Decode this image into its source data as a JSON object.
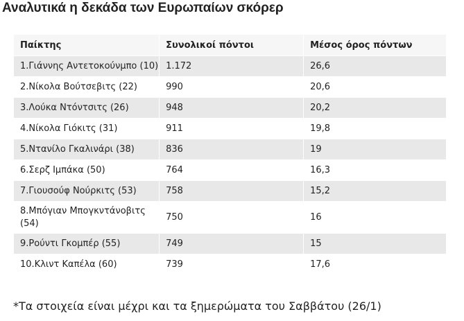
{
  "heading": "Αναλυτικά η δεκάδα των Ευρωπαίων σκόρερ",
  "table": {
    "headers": [
      "Παίκτης",
      "Συνολικοί πόντοι",
      "Μέσος όρος πόντων"
    ],
    "rows": [
      {
        "player": "1.Γιάννης Αντετοκούνμπο (10)",
        "total": "1.172",
        "avg": "26,6"
      },
      {
        "player": "2.Νίκολα Βούτσεβιτς (22)",
        "total": "990",
        "avg": "20,6"
      },
      {
        "player": "3.Λούκα Ντόντσιτς (26)",
        "total": "948",
        "avg": "20,2"
      },
      {
        "player": "4.Νίκολα Γιόκιτς (31)",
        "total": "911",
        "avg": "19,8"
      },
      {
        "player": "5.Ντανίλο Γκαλινάρι (38)",
        "total": "836",
        "avg": "19"
      },
      {
        "player": "6.Σερζ Ιμπάκα (50)",
        "total": "764",
        "avg": "16,3"
      },
      {
        "player": "7.Γιουσούφ Νούρκιτς (53)",
        "total": "758",
        "avg": "15,2"
      },
      {
        "player": "8.Μπόγιαν Μπογκντάνοβιτς (54)",
        "total": "750",
        "avg": "16"
      },
      {
        "player": "9.Ρούντι Γκομπέρ (55)",
        "total": "749",
        "avg": "15"
      },
      {
        "player": "10.Κλιντ Καπέλα (60)",
        "total": "739",
        "avg": "17,6"
      }
    ]
  },
  "footnote": "*Τα στοιχεία είναι μέχρι και τα ξημερώματα του Σαββάτου (26/1)"
}
